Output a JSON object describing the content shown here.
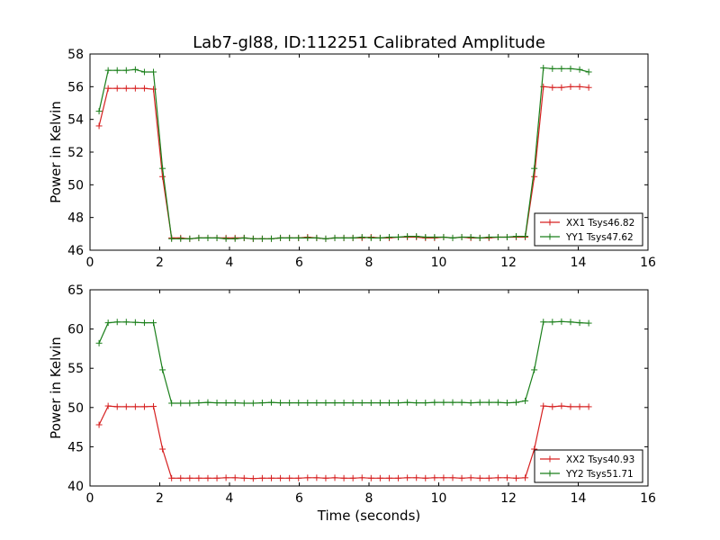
{
  "title": "Lab7-gl88, ID:112251 Calibrated Amplitude",
  "colors": {
    "red": "#d62020",
    "green": "#1a7f1a"
  },
  "chart_data": [
    {
      "type": "line",
      "ylabel": "Power in Kelvin",
      "xlabel": "",
      "xlim": [
        0,
        16
      ],
      "ylim": [
        46,
        58
      ],
      "xticks": [
        0,
        2,
        4,
        6,
        8,
        10,
        12,
        14,
        16
      ],
      "yticks": [
        46,
        48,
        50,
        52,
        54,
        56,
        58
      ],
      "legend_position": "lower-right",
      "x": [
        0.26,
        0.52,
        0.78,
        1.04,
        1.3,
        1.56,
        1.82,
        2.08,
        2.34,
        2.6,
        2.86,
        3.12,
        3.38,
        3.64,
        3.9,
        4.16,
        4.42,
        4.68,
        4.94,
        5.2,
        5.46,
        5.72,
        5.98,
        6.24,
        6.5,
        6.76,
        7.02,
        7.28,
        7.54,
        7.8,
        8.06,
        8.32,
        8.58,
        8.84,
        9.1,
        9.36,
        9.62,
        9.88,
        10.14,
        10.4,
        10.66,
        10.92,
        11.18,
        11.44,
        11.7,
        11.96,
        12.22,
        12.48,
        12.74,
        13.0,
        13.26,
        13.52,
        13.78,
        14.04,
        14.3
      ],
      "series": [
        {
          "name": "XX1 Tsys46.82",
          "color": "#d62020",
          "values": [
            53.6,
            55.9,
            55.9,
            55.9,
            55.9,
            55.9,
            55.85,
            50.5,
            46.75,
            46.75,
            46.7,
            46.75,
            46.75,
            46.75,
            46.75,
            46.75,
            46.75,
            46.7,
            46.7,
            46.7,
            46.75,
            46.75,
            46.75,
            46.8,
            46.75,
            46.7,
            46.75,
            46.75,
            46.75,
            46.75,
            46.8,
            46.75,
            46.75,
            46.8,
            46.8,
            46.8,
            46.75,
            46.75,
            46.8,
            46.75,
            46.8,
            46.75,
            46.75,
            46.75,
            46.8,
            46.8,
            46.8,
            46.8,
            50.5,
            56.0,
            55.95,
            55.95,
            56.0,
            56.0,
            55.95
          ]
        },
        {
          "name": "YY1 Tsys47.62",
          "color": "#1a7f1a",
          "values": [
            54.5,
            57.0,
            57.0,
            57.0,
            57.05,
            56.9,
            56.9,
            51.0,
            46.7,
            46.7,
            46.7,
            46.75,
            46.75,
            46.75,
            46.7,
            46.7,
            46.75,
            46.7,
            46.7,
            46.7,
            46.75,
            46.75,
            46.75,
            46.75,
            46.75,
            46.7,
            46.75,
            46.75,
            46.75,
            46.8,
            46.75,
            46.75,
            46.8,
            46.8,
            46.85,
            46.85,
            46.8,
            46.8,
            46.8,
            46.75,
            46.8,
            46.8,
            46.75,
            46.8,
            46.8,
            46.8,
            46.85,
            46.85,
            51.0,
            57.15,
            57.1,
            57.1,
            57.1,
            57.05,
            56.9
          ]
        }
      ]
    },
    {
      "type": "line",
      "ylabel": "Power in Kelvin",
      "xlabel": "Time (seconds)",
      "xlim": [
        0,
        16
      ],
      "ylim": [
        40,
        65
      ],
      "xticks": [
        0,
        2,
        4,
        6,
        8,
        10,
        12,
        14,
        16
      ],
      "yticks": [
        40,
        45,
        50,
        55,
        60,
        65
      ],
      "legend_position": "lower-right",
      "x": [
        0.26,
        0.52,
        0.78,
        1.04,
        1.3,
        1.56,
        1.82,
        2.08,
        2.34,
        2.6,
        2.86,
        3.12,
        3.38,
        3.64,
        3.9,
        4.16,
        4.42,
        4.68,
        4.94,
        5.2,
        5.46,
        5.72,
        5.98,
        6.24,
        6.5,
        6.76,
        7.02,
        7.28,
        7.54,
        7.8,
        8.06,
        8.32,
        8.58,
        8.84,
        9.1,
        9.36,
        9.62,
        9.88,
        10.14,
        10.4,
        10.66,
        10.92,
        11.18,
        11.44,
        11.7,
        11.96,
        12.22,
        12.48,
        12.74,
        13.0,
        13.26,
        13.52,
        13.78,
        14.04,
        14.3
      ],
      "series": [
        {
          "name": "XX2 Tsys40.93",
          "color": "#d62020",
          "values": [
            47.8,
            50.2,
            50.1,
            50.1,
            50.1,
            50.1,
            50.15,
            44.7,
            41.0,
            41.0,
            41.0,
            41.0,
            41.0,
            41.0,
            41.05,
            41.05,
            41.0,
            40.95,
            41.0,
            41.0,
            41.0,
            41.0,
            41.0,
            41.05,
            41.05,
            41.0,
            41.05,
            41.0,
            41.0,
            41.05,
            41.0,
            41.0,
            41.0,
            41.0,
            41.05,
            41.05,
            41.0,
            41.05,
            41.05,
            41.05,
            41.0,
            41.05,
            41.0,
            41.0,
            41.05,
            41.05,
            41.0,
            41.05,
            44.7,
            50.2,
            50.1,
            50.2,
            50.1,
            50.1,
            50.1
          ]
        },
        {
          "name": "YY2 Tsys51.71",
          "color": "#1a7f1a",
          "values": [
            58.2,
            60.8,
            60.9,
            60.9,
            60.85,
            60.8,
            60.8,
            54.8,
            50.55,
            50.55,
            50.55,
            50.6,
            50.65,
            50.6,
            50.6,
            50.6,
            50.55,
            50.55,
            50.6,
            50.65,
            50.6,
            50.6,
            50.6,
            50.6,
            50.6,
            50.6,
            50.6,
            50.6,
            50.6,
            50.6,
            50.6,
            50.6,
            50.6,
            50.6,
            50.65,
            50.6,
            50.6,
            50.65,
            50.65,
            50.65,
            50.65,
            50.6,
            50.65,
            50.65,
            50.65,
            50.6,
            50.65,
            50.85,
            54.8,
            60.9,
            60.9,
            60.95,
            60.9,
            60.8,
            60.75
          ]
        }
      ]
    }
  ]
}
